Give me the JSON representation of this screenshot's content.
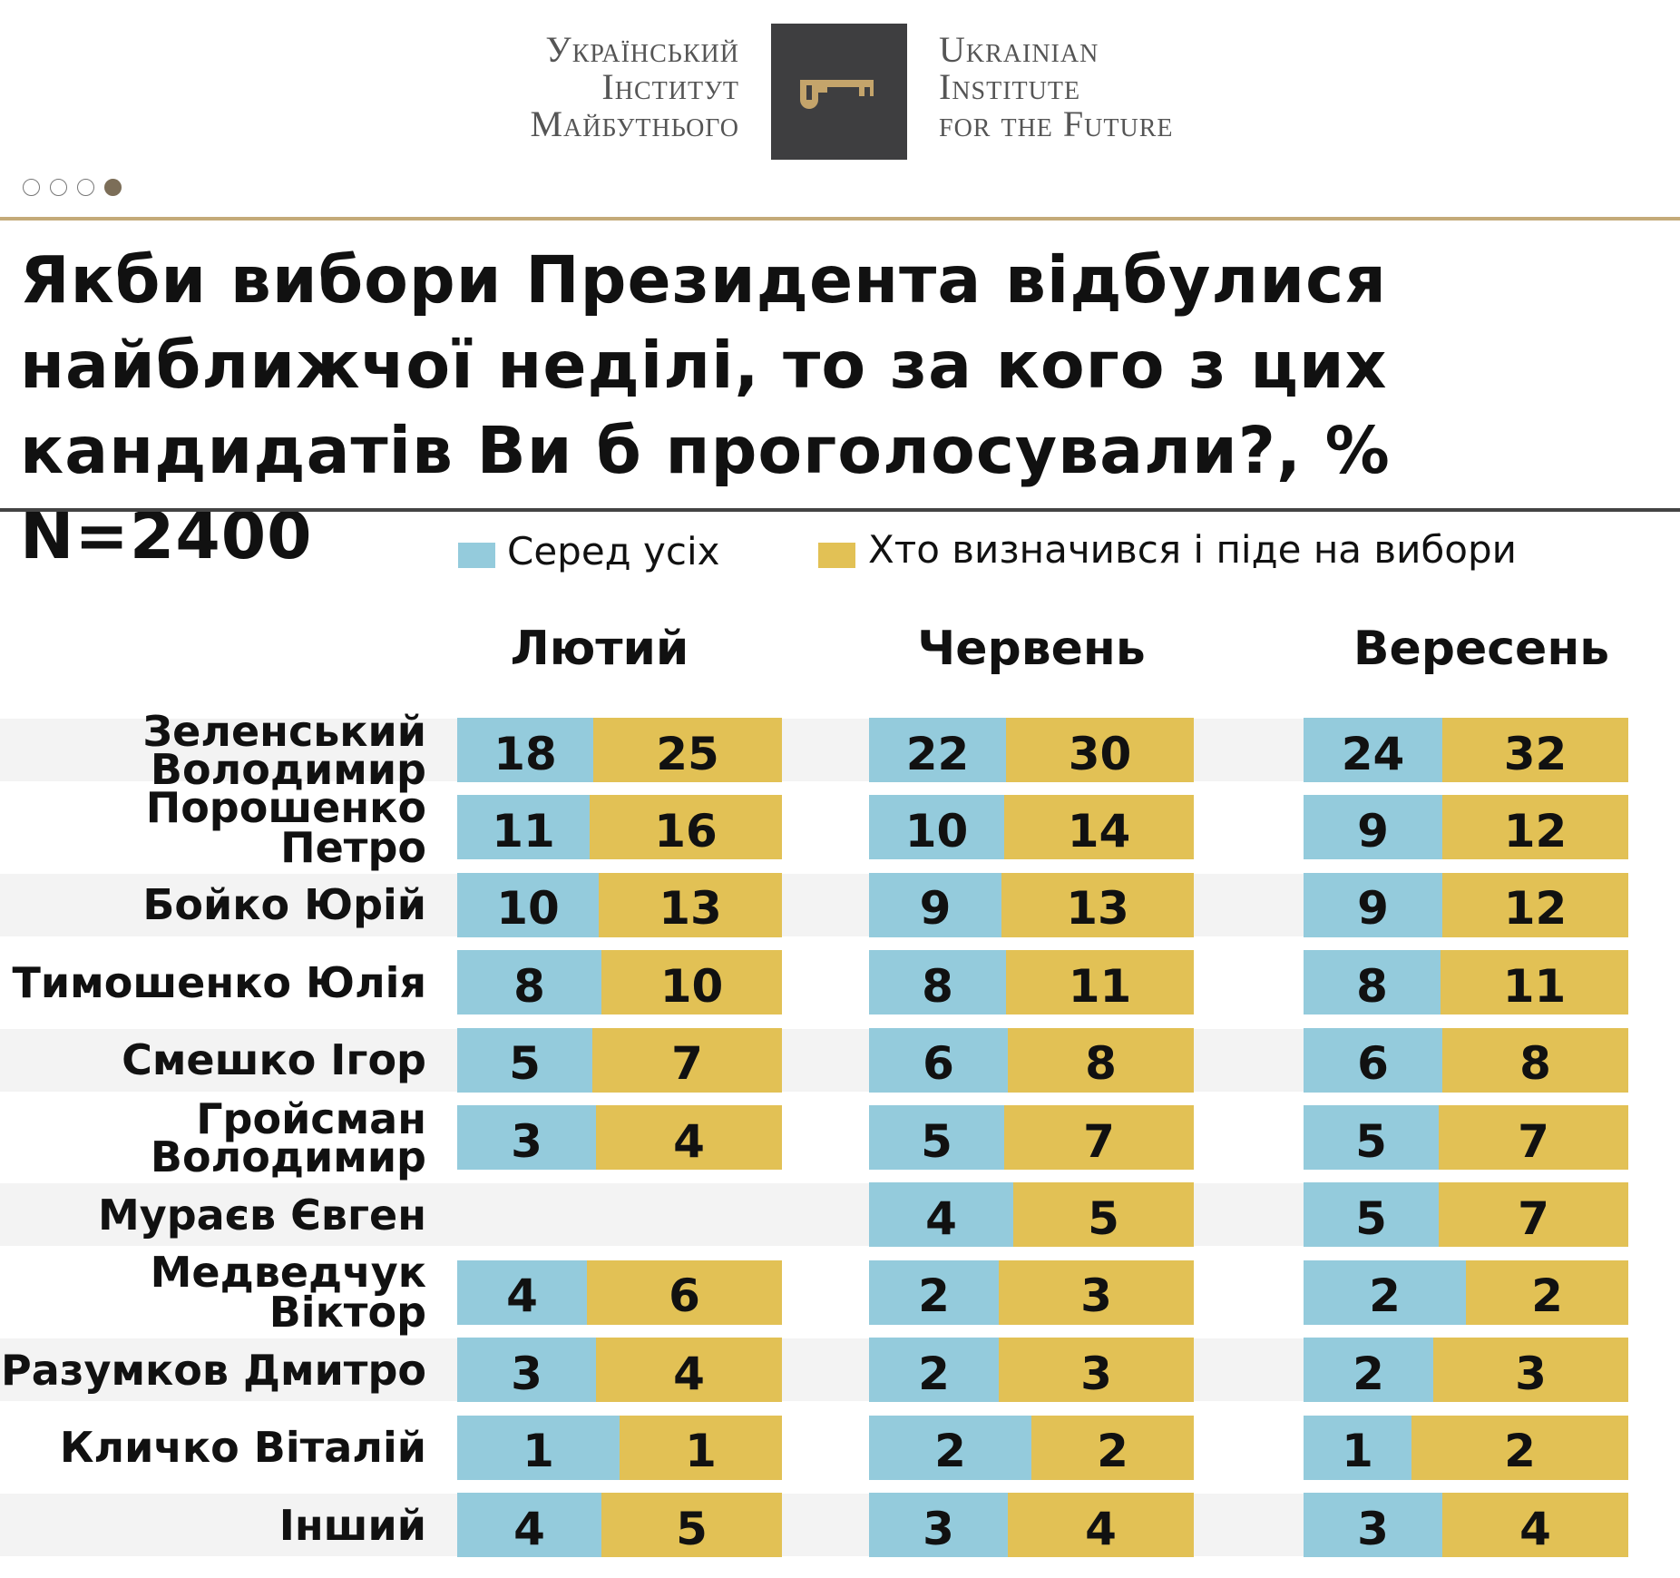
{
  "header": {
    "logo_ua": [
      "Український",
      "Інститут",
      "Майбутнього"
    ],
    "logo_en": [
      "Ukrainian",
      "Institute",
      "for the Future"
    ],
    "logo_icon": "key-icon",
    "carousel_dots": 4,
    "carousel_active": 3
  },
  "colors": {
    "blue": "#94cbdc",
    "gold": "#e2c155",
    "rule": "#c4aa78"
  },
  "chart_data": {
    "type": "bar",
    "title": "Якби вибори Президента відбулися найближчої неділі, то за кого з цих кандидатів Ви б проголосували?, % N=2400",
    "legend": [
      "Серед усіх",
      "Хто визначився і піде на вибори"
    ],
    "groups": [
      "Лютий",
      "Червень",
      "Вересень"
    ],
    "categories": [
      "Зеленський Володимир",
      "Порошенко Петро",
      "Бойко Юрій",
      "Тимошенко Юлія",
      "Смешко Ігор",
      "Гройсман Володимир",
      "Мураєв Євген",
      "Медведчук Віктор",
      "Разумков Дмитро",
      "Кличко Віталій",
      "Інший"
    ],
    "series": [
      {
        "name": "Серед усіх",
        "values": {
          "Лютий": [
            18,
            11,
            10,
            8,
            5,
            3,
            null,
            4,
            3,
            1,
            4
          ],
          "Червень": [
            22,
            10,
            9,
            8,
            6,
            5,
            4,
            2,
            2,
            2,
            3
          ],
          "Вересень": [
            24,
            9,
            9,
            8,
            6,
            5,
            5,
            2,
            2,
            1,
            3
          ]
        }
      },
      {
        "name": "Хто визначився і піде на вибори",
        "values": {
          "Лютий": [
            25,
            16,
            13,
            10,
            7,
            4,
            null,
            6,
            4,
            1,
            5
          ],
          "Червень": [
            30,
            14,
            13,
            11,
            8,
            7,
            5,
            3,
            3,
            2,
            4
          ],
          "Вересень": [
            32,
            12,
            12,
            11,
            8,
            7,
            7,
            2,
            3,
            2,
            4
          ]
        }
      }
    ]
  }
}
